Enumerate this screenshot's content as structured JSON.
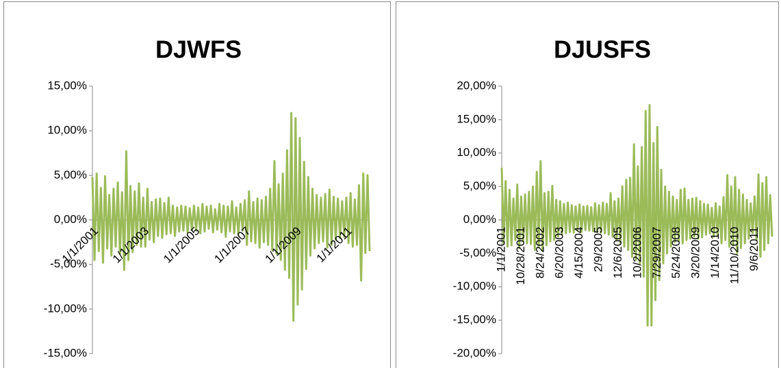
{
  "chart_data": [
    {
      "type": "line",
      "title": "DJWFS",
      "color": "#9bbb59",
      "ylim": [
        -15,
        15
      ],
      "yticks": [
        {
          "value": -15,
          "label": "-15,00%"
        },
        {
          "value": -10,
          "label": "-10,00%"
        },
        {
          "value": -5,
          "label": "-5,00%"
        },
        {
          "value": 0,
          "label": "0,00%"
        },
        {
          "value": 5,
          "label": "5,00%"
        },
        {
          "value": 10,
          "label": "10,00%"
        },
        {
          "value": 15,
          "label": "15,00%"
        }
      ],
      "categories": [
        "1/1/2001",
        null,
        null,
        null,
        null,
        null,
        null,
        null,
        null,
        null,
        null,
        null,
        null,
        null,
        null,
        null,
        null,
        null,
        null,
        null,
        null,
        null,
        null,
        null,
        "1/1/2003",
        null,
        null,
        null,
        null,
        null,
        null,
        null,
        null,
        null,
        null,
        null,
        null,
        null,
        null,
        null,
        null,
        null,
        null,
        null,
        null,
        null,
        null,
        null,
        "1/1/2005",
        null,
        null,
        null,
        null,
        null,
        null,
        null,
        null,
        null,
        null,
        null,
        null,
        null,
        null,
        null,
        null,
        null,
        null,
        null,
        null,
        null,
        null,
        null,
        "1/1/2007",
        null,
        null,
        null,
        null,
        null,
        null,
        null,
        null,
        null,
        null,
        null,
        null,
        null,
        null,
        null,
        null,
        null,
        null,
        null,
        null,
        null,
        null,
        null,
        "1/1/2009",
        null,
        null,
        null,
        null,
        null,
        null,
        null,
        null,
        null,
        null,
        null,
        null,
        null,
        null,
        null,
        null,
        null,
        null,
        null,
        null,
        null,
        null,
        null,
        "1/1/2011",
        null,
        null,
        null,
        null,
        null,
        null,
        null,
        null,
        null,
        null,
        null
      ],
      "values": [
        4.8,
        -4.5,
        5.2,
        -3.5,
        3.6,
        -4.8,
        4.9,
        -3.2,
        2.8,
        -4.0,
        3.5,
        -3.0,
        4.2,
        -3.8,
        3.1,
        -5.6,
        7.7,
        -4.5,
        3.8,
        -3.6,
        3.2,
        -2.8,
        4.1,
        -3.0,
        2.5,
        -3.0,
        3.5,
        -2.2,
        2.0,
        -2.5,
        2.3,
        -1.8,
        2.4,
        -2.0,
        1.9,
        -1.6,
        2.5,
        -1.5,
        1.6,
        -1.8,
        1.4,
        -1.3,
        1.6,
        -1.2,
        1.5,
        -1.4,
        1.3,
        -1.1,
        1.6,
        -1.2,
        1.4,
        -1.5,
        1.8,
        -1.3,
        1.5,
        -1.0,
        1.6,
        -1.4,
        1.2,
        -1.1,
        1.8,
        -1.4,
        1.6,
        -1.9,
        1.5,
        -1.3,
        2.1,
        -1.5,
        1.4,
        -1.6,
        1.8,
        -1.2,
        2.2,
        -2.8,
        3.2,
        -2.4,
        2.0,
        -2.6,
        2.4,
        -3.1,
        2.2,
        -2.5,
        2.6,
        -2.8,
        3.5,
        -3.4,
        6.6,
        -3.8,
        4.0,
        -4.5,
        5.2,
        -5.6,
        7.8,
        -6.5,
        12.0,
        -11.3,
        11.4,
        -9.5,
        9.2,
        -7.8,
        6.5,
        -5.5,
        4.8,
        -4.0,
        3.5,
        -3.2,
        2.8,
        -2.6,
        2.5,
        -2.4,
        2.9,
        -3.1,
        3.4,
        -2.8,
        2.6,
        -2.2,
        2.4,
        -2.0,
        2.1,
        -1.9,
        2.5,
        -2.6,
        3.0,
        -3.0,
        2.3,
        -2.8,
        3.9,
        -6.8,
        5.2,
        -3.7,
        5.0,
        -3.5
      ]
    },
    {
      "type": "line",
      "title": "DJUSFS",
      "color": "#9bbb59",
      "ylim": [
        -20,
        20
      ],
      "yticks": [
        {
          "value": -20,
          "label": "-20,00%"
        },
        {
          "value": -15,
          "label": "-15,00%"
        },
        {
          "value": -10,
          "label": "-10,00%"
        },
        {
          "value": -5,
          "label": "-5,00%"
        },
        {
          "value": 0,
          "label": "0,00%"
        },
        {
          "value": 5,
          "label": "5,00%"
        },
        {
          "value": 10,
          "label": "10,00%"
        },
        {
          "value": 15,
          "label": "15,00%"
        },
        {
          "value": 20,
          "label": "20,00%"
        }
      ],
      "categories": [
        "1/1/2001",
        null,
        null,
        null,
        null,
        null,
        null,
        null,
        null,
        null,
        "10/28/2001",
        null,
        null,
        null,
        null,
        null,
        null,
        null,
        null,
        null,
        "8/24/2002",
        null,
        null,
        null,
        null,
        null,
        null,
        null,
        null,
        null,
        "6/20/2003",
        null,
        null,
        null,
        null,
        null,
        null,
        null,
        null,
        null,
        "4/15/2004",
        null,
        null,
        null,
        null,
        null,
        null,
        null,
        null,
        null,
        "2/9/2005",
        null,
        null,
        null,
        null,
        null,
        null,
        null,
        null,
        null,
        "12/6/2005",
        null,
        null,
        null,
        null,
        null,
        null,
        null,
        null,
        null,
        "10/2/2006",
        null,
        null,
        null,
        null,
        null,
        null,
        null,
        null,
        null,
        "7/29/2007",
        null,
        null,
        null,
        null,
        null,
        null,
        null,
        null,
        null,
        "5/24/2008",
        null,
        null,
        null,
        null,
        null,
        null,
        null,
        null,
        null,
        "3/20/2009",
        null,
        null,
        null,
        null,
        null,
        null,
        null,
        null,
        null,
        "1/14/2010",
        null,
        null,
        null,
        null,
        null,
        null,
        null,
        null,
        null,
        "11/10/2010",
        null,
        null,
        null,
        null,
        null,
        null,
        null,
        null,
        null,
        "9/6/2011",
        null,
        null,
        null,
        null,
        null,
        null,
        null,
        null,
        null
      ],
      "values": [
        7.8,
        -3.5,
        5.8,
        -4.0,
        4.5,
        -3.8,
        3.2,
        -3.0,
        5.3,
        -4.2,
        3.5,
        -3.2,
        3.8,
        -3.5,
        4.2,
        -3.6,
        5.0,
        -4.5,
        7.2,
        -4.0,
        8.8,
        -4.5,
        4.0,
        -3.8,
        4.2,
        -3.2,
        5.1,
        -3.0,
        3.0,
        -2.5,
        2.8,
        -2.2,
        2.4,
        -2.0,
        2.6,
        -1.8,
        2.2,
        -1.9,
        2.0,
        -1.6,
        2.3,
        -1.8,
        2.0,
        -1.5,
        2.1,
        -1.6,
        1.9,
        -1.7,
        2.5,
        -1.8,
        2.2,
        -1.9,
        2.6,
        -2.0,
        2.4,
        -2.2,
        4.0,
        -2.5,
        2.8,
        -3.0,
        3.2,
        -3.5,
        5.0,
        -4.0,
        6.0,
        -4.5,
        6.3,
        -5.5,
        11.3,
        -6.0,
        8.0,
        -6.5,
        10.9,
        -8.5,
        16.3,
        -15.8,
        17.2,
        -15.8,
        11.5,
        -12.0,
        13.9,
        -9.0,
        7.5,
        -6.5,
        5.0,
        -5.0,
        4.2,
        -4.0,
        3.5,
        -3.3,
        3.0,
        -3.2,
        4.5,
        -3.5,
        4.7,
        -3.0,
        3.0,
        -2.8,
        3.2,
        -2.5,
        3.3,
        -2.8,
        2.8,
        -2.6,
        2.4,
        -2.2,
        2.3,
        -2.0,
        1.8,
        -2.5,
        2.5,
        -2.3,
        2.0,
        -3.5,
        3.4,
        -3.0,
        6.7,
        -4.0,
        5.0,
        -3.8,
        6.4,
        -5.0,
        4.5,
        -4.2,
        3.8,
        -3.5,
        3.0,
        -2.8,
        2.5,
        -2.0,
        3.5,
        -3.0,
        6.8,
        -5.5,
        5.5,
        -4.5,
        6.4,
        -3.5,
        3.7,
        -2.5
      ]
    }
  ]
}
